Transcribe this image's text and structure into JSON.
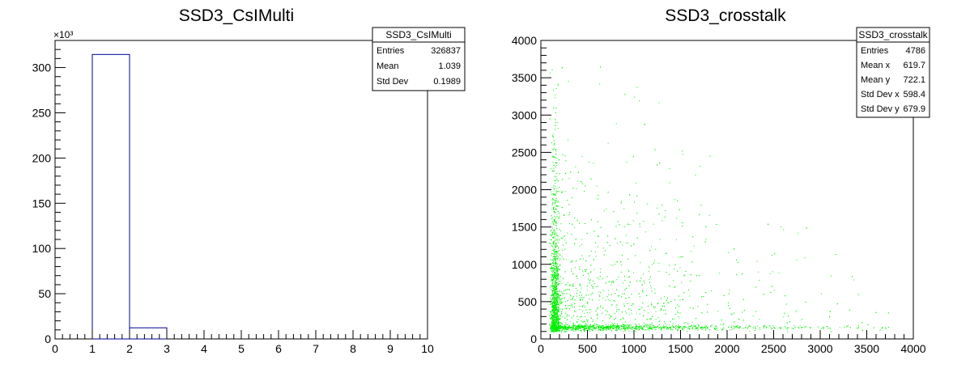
{
  "chart_data": [
    {
      "type": "bar",
      "title": "SSD3_CsIMulti",
      "xlabel": "",
      "ylabel": "",
      "xlim": [
        0,
        10
      ],
      "ylim": [
        0,
        330000
      ],
      "y_scale_label": "×10³",
      "x_ticks": [
        "0",
        "1",
        "2",
        "3",
        "4",
        "5",
        "6",
        "7",
        "8",
        "9",
        "10"
      ],
      "y_ticks": [
        "0",
        "50",
        "100",
        "150",
        "200",
        "250",
        "300"
      ],
      "categories": [
        "0-1",
        "1-2",
        "2-3",
        "3-4",
        "4-5",
        "5-6",
        "6-7",
        "7-8",
        "8-9",
        "9-10"
      ],
      "bin_edges": [
        0,
        1,
        2,
        3,
        4,
        5,
        6,
        7,
        8,
        9,
        10
      ],
      "values": [
        0,
        314500,
        12300,
        0,
        0,
        0,
        0,
        0,
        0,
        0
      ],
      "line_color": "#000099",
      "stats": {
        "name": "SSD3_CsIMulti",
        "rows": [
          {
            "label": "Entries",
            "value": "326837"
          },
          {
            "label": "Mean",
            "value": "1.039"
          },
          {
            "label": "Std Dev",
            "value": "0.1989"
          }
        ]
      }
    },
    {
      "type": "scatter",
      "title": "SSD3_crosstalk",
      "xlabel": "",
      "ylabel": "",
      "xlim": [
        0,
        4000
      ],
      "ylim": [
        0,
        4000
      ],
      "x_ticks": [
        "0",
        "500",
        "1000",
        "1500",
        "2000",
        "2500",
        "3000",
        "3500",
        "4000"
      ],
      "y_ticks": [
        "0",
        "500",
        "1000",
        "1500",
        "2000",
        "2500",
        "3000",
        "3500",
        "4000"
      ],
      "point_color": "#00ee00",
      "n_points": 4786,
      "stats": {
        "name": "SSD3_crosstalk",
        "rows": [
          {
            "label": "Entries",
            "value": "4786"
          },
          {
            "label": "Mean x",
            "value": "619.7"
          },
          {
            "label": "Mean y",
            "value": "722.1"
          },
          {
            "label": "Std Dev x",
            "value": "598.4"
          },
          {
            "label": "Std Dev y",
            "value": "679.9"
          }
        ]
      }
    }
  ]
}
